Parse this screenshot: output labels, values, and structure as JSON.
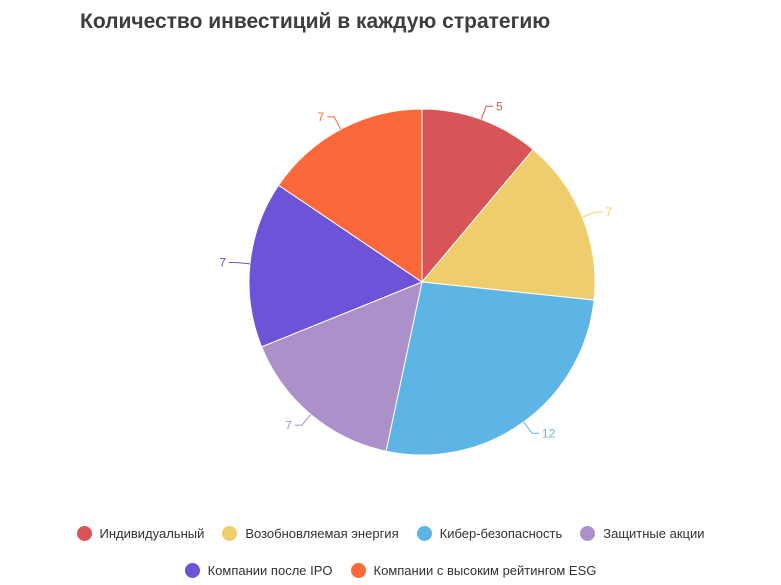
{
  "chart_data": {
    "type": "pie",
    "title": "Количество инвестиций в каждую стратегию",
    "categories": [
      "Индивидуальный",
      "Возобновляемая энергия",
      "Кибер-безопасность",
      "Защитные акции",
      "Компании после IPO",
      "Компании с высоким рейтингом ESG"
    ],
    "values": [
      5,
      7,
      12,
      7,
      7,
      7
    ],
    "colors": [
      "#d95457",
      "#f0cd6c",
      "#5db5e5",
      "#ab90c9",
      "#6c53d8",
      "#fb693b"
    ],
    "legend_position": "bottom",
    "data_labels": true
  }
}
